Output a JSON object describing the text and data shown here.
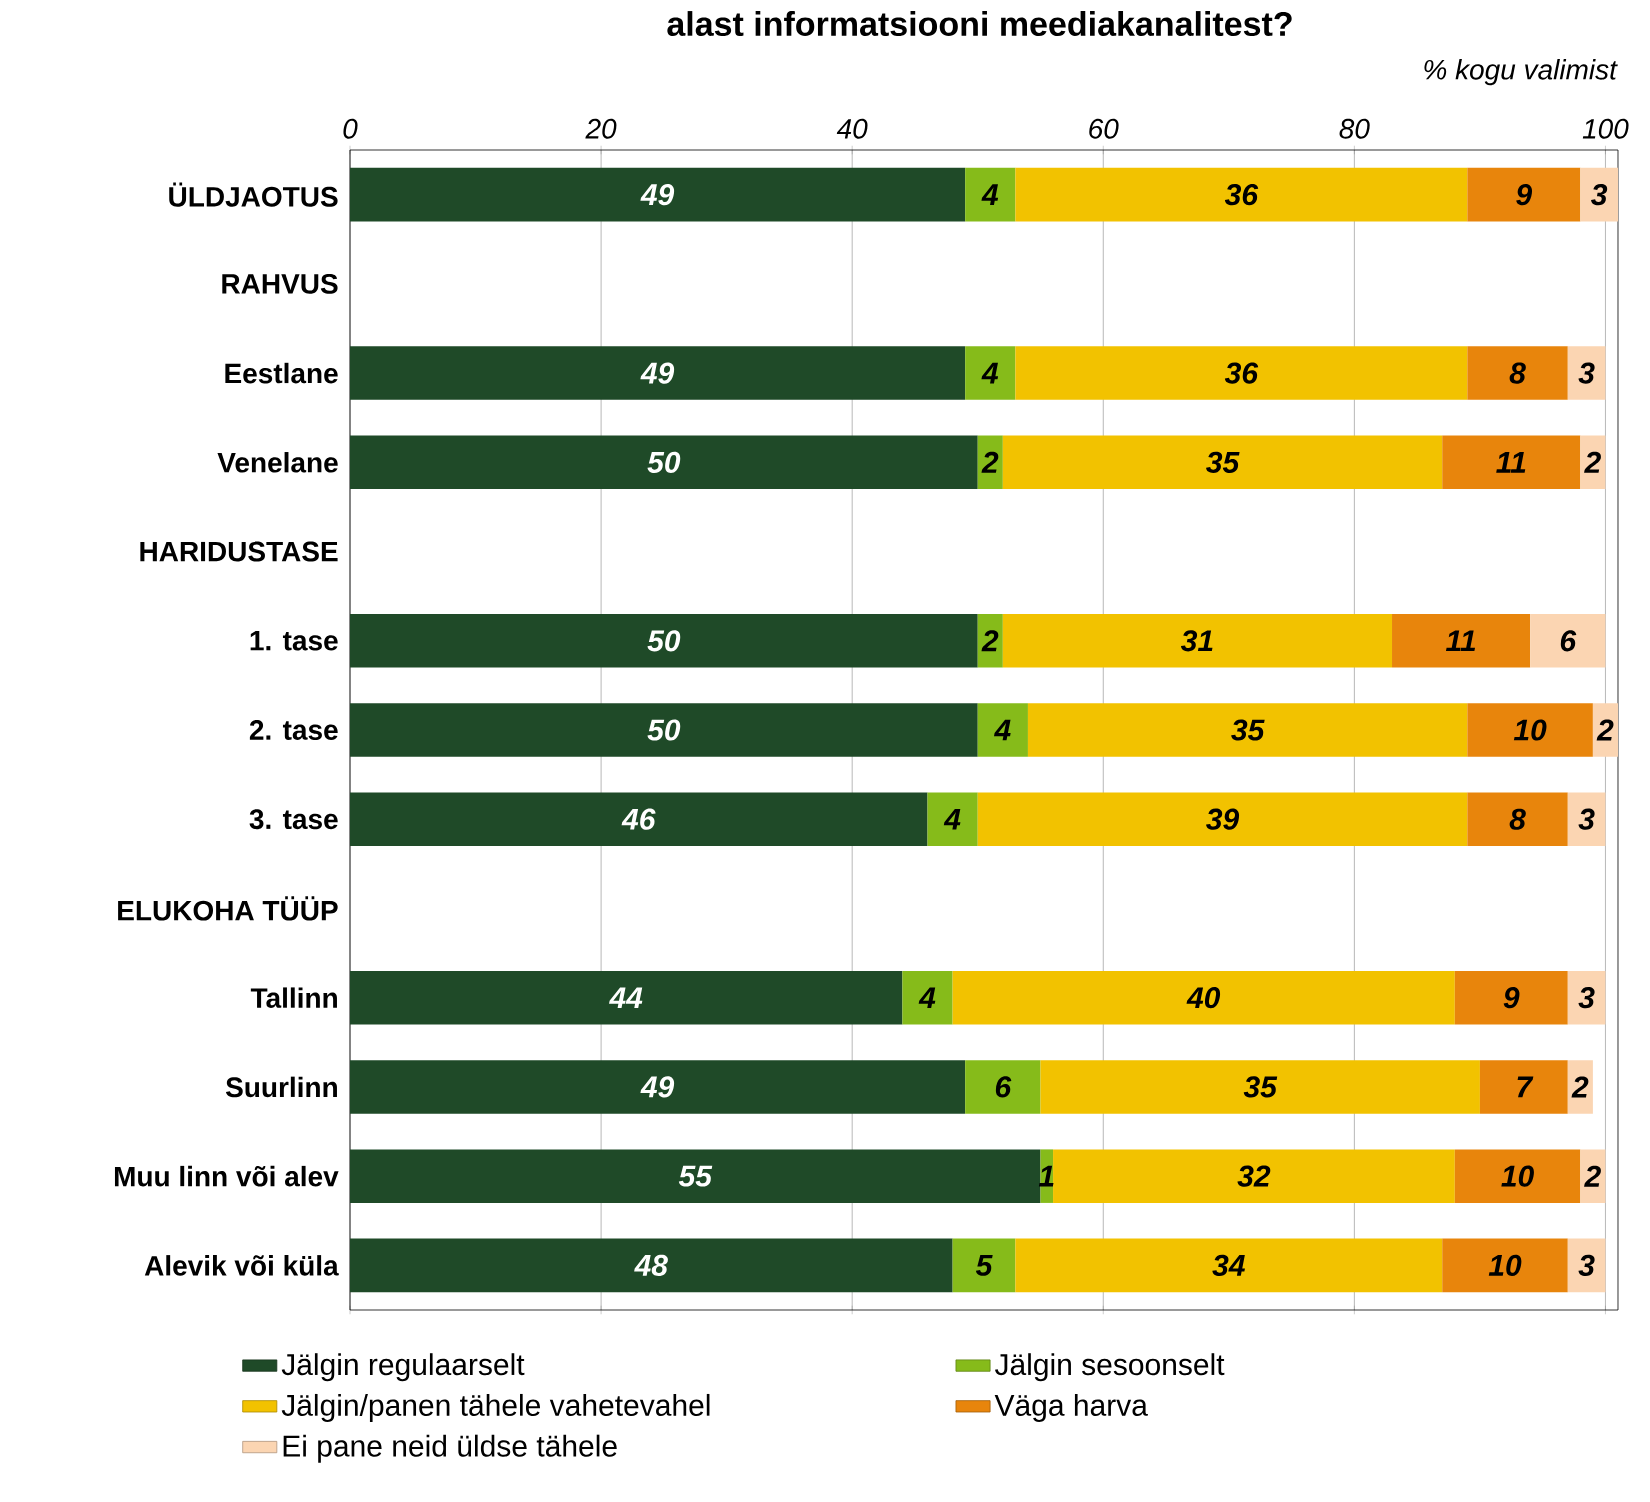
{
  "chart_data": {
    "type": "bar",
    "orientation": "horizontal",
    "stacked": true,
    "title": "alast informatsiooni meediakanalitest?",
    "annotations": [
      "% kogu valimist"
    ],
    "categories": [
      "ÜLDJAOTUS",
      "RAHVUS",
      "Eestlane",
      "Venelane",
      "HARIDUSTASE",
      "1. tase",
      "2. tase",
      "3. tase",
      "ELUKOHA TÜÜP",
      "Tallinn",
      "Suurlinn",
      "Muu linn või alev",
      "Alevik või küla"
    ],
    "series": [
      {
        "name": "Jälgin regulaarselt",
        "color": "#1f4a28",
        "values": [
          49,
          null,
          49,
          50,
          null,
          50,
          50,
          46,
          null,
          44,
          49,
          55,
          48
        ]
      },
      {
        "name": "Jälgin sesoonselt",
        "color": "#86bb1a",
        "values": [
          4,
          null,
          4,
          2,
          null,
          2,
          4,
          4,
          null,
          4,
          6,
          1,
          5
        ]
      },
      {
        "name": "Jälgin/panen tähele vahetevahel",
        "color": "#f2c200",
        "values": [
          36,
          null,
          36,
          35,
          null,
          31,
          35,
          39,
          null,
          40,
          35,
          32,
          34
        ]
      },
      {
        "name": "Väga harva",
        "color": "#e8850c",
        "values": [
          9,
          null,
          8,
          11,
          null,
          11,
          10,
          8,
          null,
          9,
          7,
          10,
          10
        ]
      },
      {
        "name": "Ei pane neid üldse tähele",
        "color": "#fbd5b2",
        "values": [
          3,
          null,
          3,
          2,
          null,
          6,
          2,
          3,
          null,
          3,
          2,
          2,
          3
        ]
      }
    ],
    "xlim": [
      0,
      101
    ],
    "xticks": [
      0,
      20,
      40,
      60,
      80,
      100
    ],
    "grid": "x",
    "legend": "bottom",
    "data_labels": true
  }
}
